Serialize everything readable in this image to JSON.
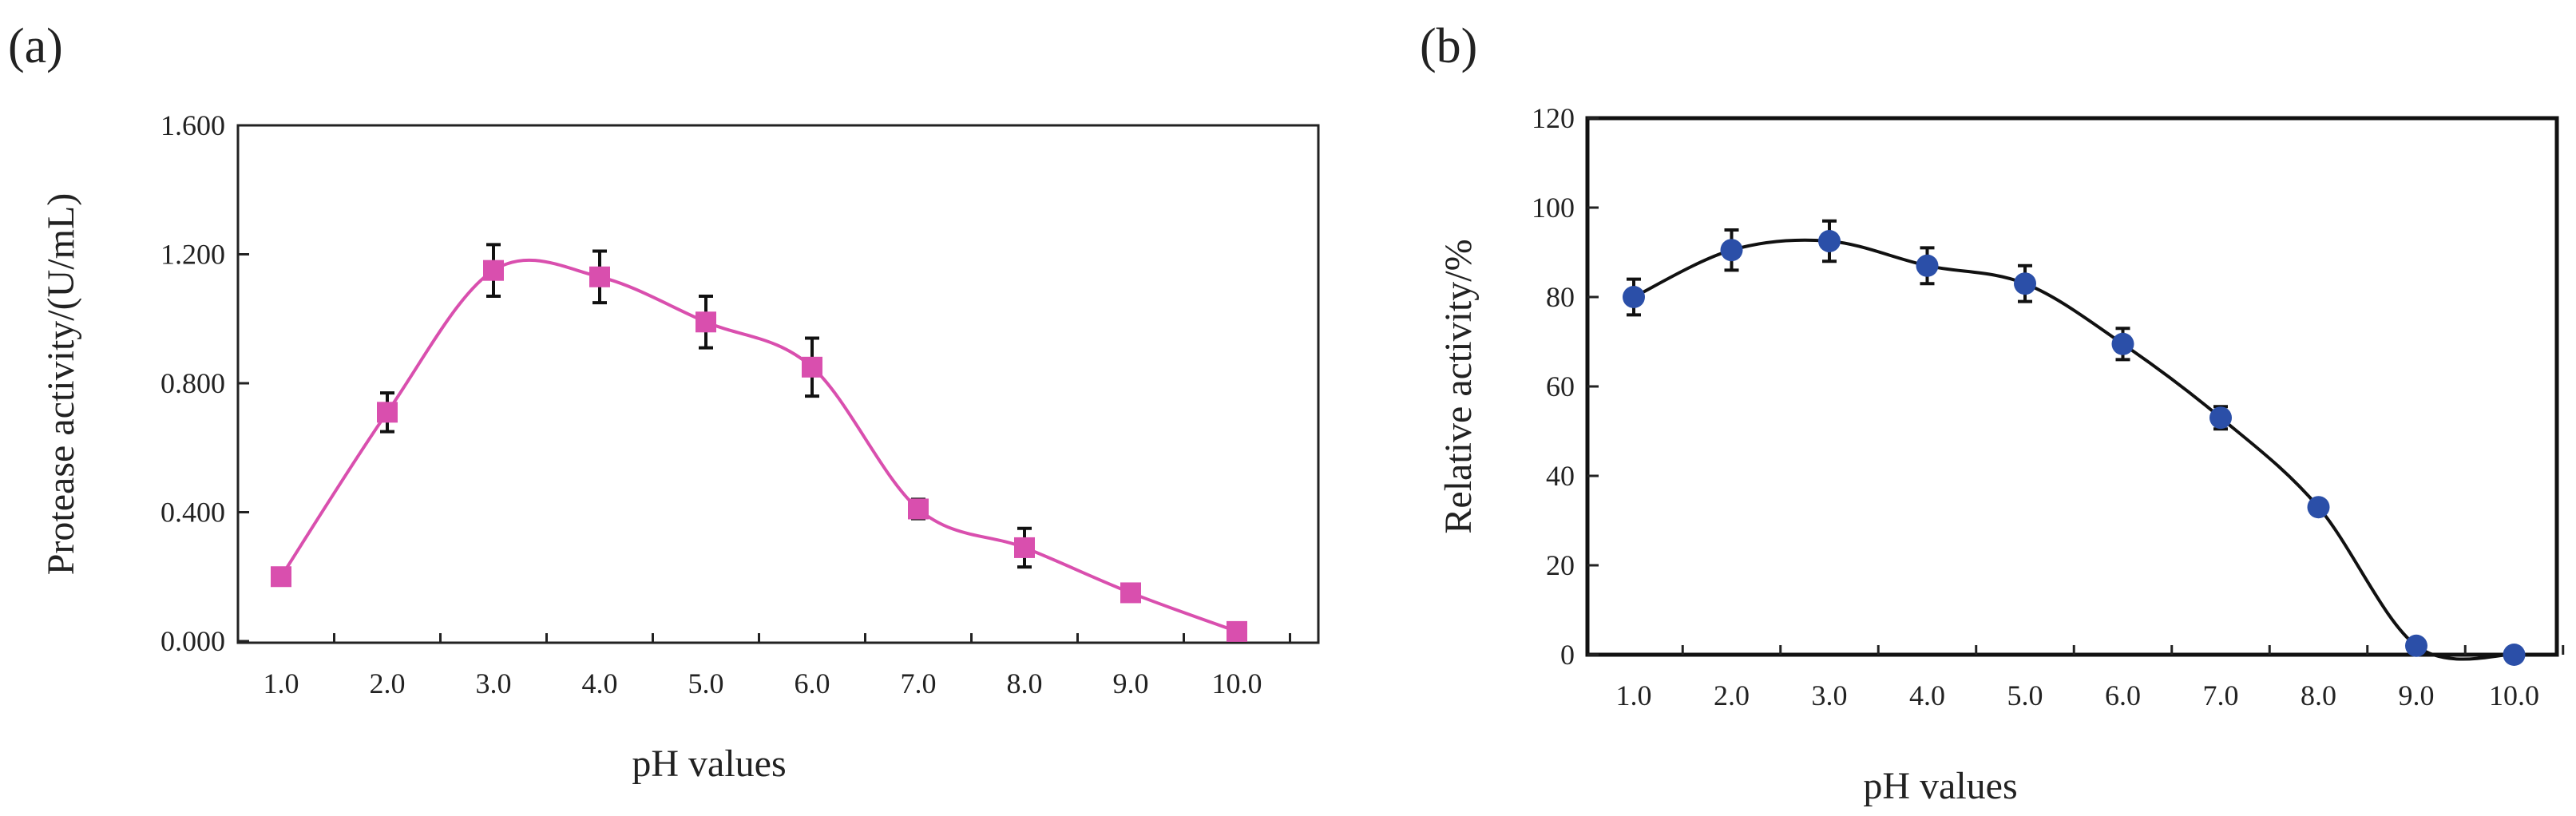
{
  "chart_data": [
    {
      "type": "line",
      "panel_label": "(a)",
      "title": "",
      "xlabel": "pH values",
      "ylabel": "Protease activity/(U/mL)",
      "categories": [
        "1.0",
        "2.0",
        "3.0",
        "4.0",
        "5.0",
        "6.0",
        "7.0",
        "8.0",
        "9.0",
        "10.0"
      ],
      "yticks": [
        "0.000",
        "0.400",
        "0.800",
        "1.200",
        "1.600"
      ],
      "ylim": [
        0,
        1.6
      ],
      "grid": false,
      "series": [
        {
          "name": "Protease activity",
          "marker": "square",
          "color": "#d94fae",
          "values": [
            0.2,
            0.71,
            1.15,
            1.13,
            0.99,
            0.85,
            0.41,
            0.29,
            0.15,
            0.03
          ],
          "errors": [
            0.0,
            0.06,
            0.08,
            0.08,
            0.08,
            0.09,
            0.03,
            0.06,
            0.02,
            0.0
          ]
        }
      ]
    },
    {
      "type": "line",
      "panel_label": "(b)",
      "title": "",
      "xlabel": "pH values",
      "ylabel": "Relative activity/%",
      "categories": [
        "1.0",
        "2.0",
        "3.0",
        "4.0",
        "5.0",
        "6.0",
        "7.0",
        "8.0",
        "9.0",
        "10.0"
      ],
      "yticks": [
        "0",
        "20",
        "40",
        "60",
        "80",
        "100",
        "120"
      ],
      "ylim": [
        0,
        120
      ],
      "grid": false,
      "series": [
        {
          "name": "Relative activity",
          "marker": "circle",
          "color": "#2b4fa8",
          "line_color": "#111111",
          "values": [
            80,
            90.5,
            92.5,
            87,
            83,
            69.5,
            53,
            33,
            2,
            0
          ],
          "errors": [
            4,
            4.5,
            4.5,
            4,
            4,
            3.5,
            2.5,
            0,
            0,
            0
          ]
        }
      ]
    }
  ]
}
